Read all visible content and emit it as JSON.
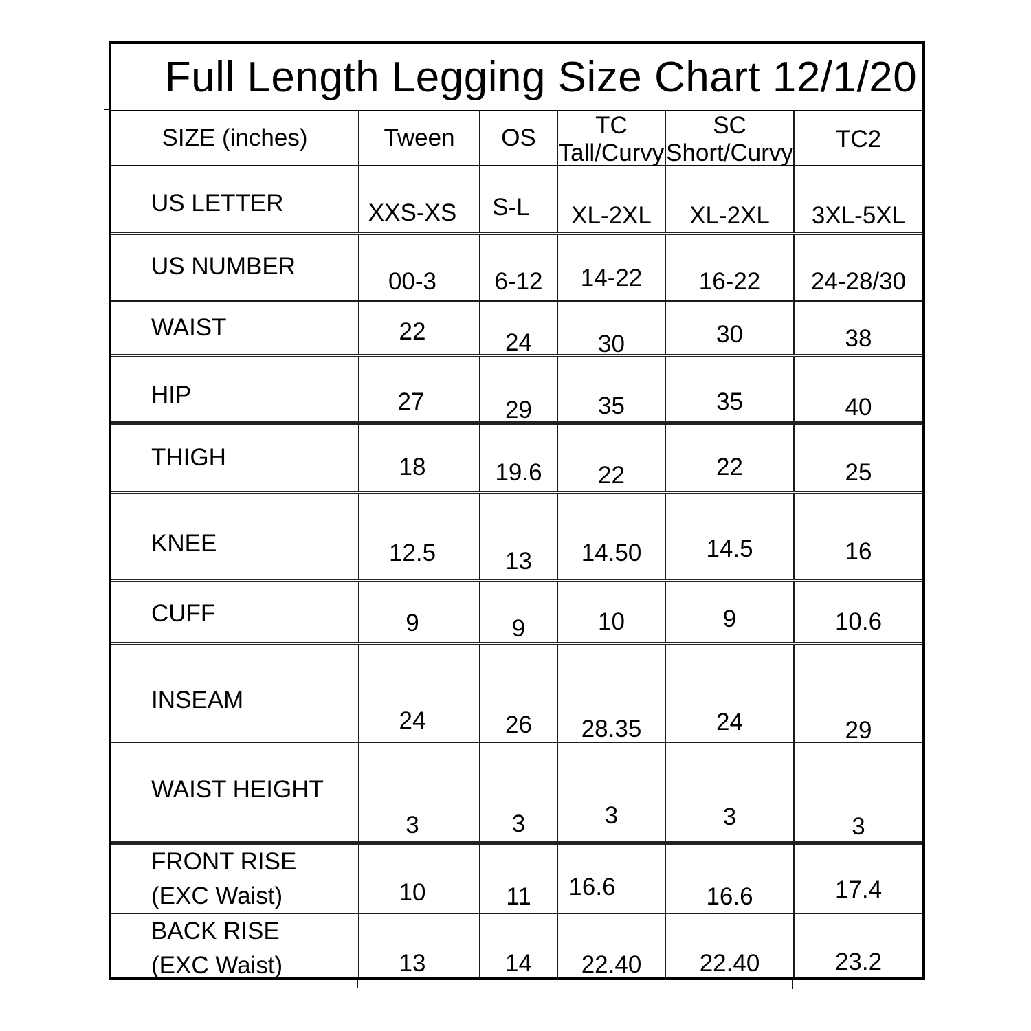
{
  "title": "Full Length Legging Size Chart 12/1/20",
  "table": {
    "units": "inches",
    "corner_label": "SIZE (inches)",
    "columns": [
      {
        "line1": "Tween"
      },
      {
        "line1": "OS"
      },
      {
        "line1": "TC",
        "line2": "Tall/Curvy"
      },
      {
        "line1": "SC",
        "line2": "Short/Curvy"
      },
      {
        "line1": "TC2"
      }
    ],
    "rows": [
      {
        "label": "US LETTER",
        "values": [
          "XXS-XS",
          "S-L",
          "XL-2XL",
          "XL-2XL",
          "3XL-5XL"
        ]
      },
      {
        "label": "US NUMBER",
        "values": [
          "00-3",
          "6-12",
          "14-22",
          "16-22",
          "24-28/30"
        ]
      },
      {
        "label": "WAIST",
        "values": [
          "22",
          "24",
          "30",
          "30",
          "38"
        ]
      },
      {
        "label": "HIP",
        "values": [
          "27",
          "29",
          "35",
          "35",
          "40"
        ]
      },
      {
        "label": "THIGH",
        "values": [
          "18",
          "19.6",
          "22",
          "22",
          "25"
        ]
      },
      {
        "label": "KNEE",
        "values": [
          "12.5",
          "13",
          "14.50",
          "14.5",
          "16"
        ]
      },
      {
        "label": "CUFF",
        "values": [
          "9",
          "9",
          "10",
          "9",
          "10.6"
        ]
      },
      {
        "label": "INSEAM",
        "values": [
          "24",
          "26",
          "28.35",
          "24",
          "29"
        ]
      },
      {
        "label": "WAIST HEIGHT",
        "values": [
          "3",
          "3",
          "3",
          "3",
          "3"
        ]
      },
      {
        "label": "FRONT RISE",
        "label2": "(EXC Waist)",
        "values": [
          "10",
          "11",
          "16.6",
          "16.6",
          "17.4"
        ]
      },
      {
        "label": "BACK RISE",
        "label2": "(EXC Waist)",
        "values": [
          "13",
          "14",
          "22.40",
          "22.40",
          "23.2"
        ]
      }
    ]
  },
  "chart_data": {
    "type": "table",
    "title": "Full Length Legging Size Chart 12/1/20",
    "columns": [
      "SIZE (inches)",
      "Tween",
      "OS",
      "TC Tall/Curvy",
      "SC Short/Curvy",
      "TC2"
    ],
    "rows": [
      [
        "US LETTER",
        "XXS-XS",
        "S-L",
        "XL-2XL",
        "XL-2XL",
        "3XL-5XL"
      ],
      [
        "US NUMBER",
        "00-3",
        "6-12",
        "14-22",
        "16-22",
        "24-28/30"
      ],
      [
        "WAIST",
        22,
        24,
        30,
        30,
        38
      ],
      [
        "HIP",
        27,
        29,
        35,
        35,
        40
      ],
      [
        "THIGH",
        18,
        19.6,
        22,
        22,
        25
      ],
      [
        "KNEE",
        12.5,
        13,
        14.5,
        14.5,
        16
      ],
      [
        "CUFF",
        9,
        9,
        10,
        9,
        10.6
      ],
      [
        "INSEAM",
        24,
        26,
        28.35,
        24,
        29
      ],
      [
        "WAIST HEIGHT",
        3,
        3,
        3,
        3,
        3
      ],
      [
        "FRONT RISE (EXC Waist)",
        10,
        11,
        16.6,
        16.6,
        17.4
      ],
      [
        "BACK RISE (EXC Waist)",
        13,
        14,
        22.4,
        22.4,
        23.2
      ]
    ]
  }
}
